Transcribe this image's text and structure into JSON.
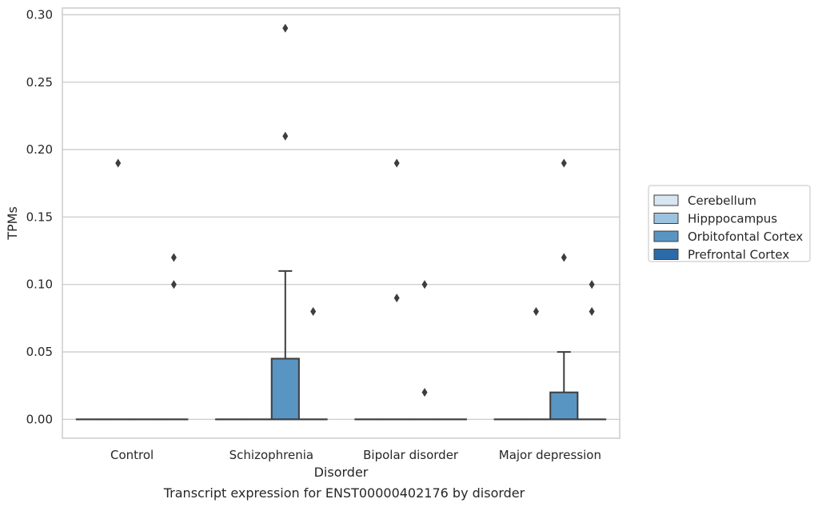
{
  "chart_data": {
    "type": "box",
    "caption": "Transcript expression for ENST00000402176 by disorder",
    "xlabel": "Disorder",
    "ylabel": "TPMs",
    "ylim": [
      -0.014,
      0.305
    ],
    "yticks": [
      0.0,
      0.05,
      0.1,
      0.15,
      0.2,
      0.25,
      0.3
    ],
    "ytick_labels": [
      "0.00",
      "0.05",
      "0.10",
      "0.15",
      "0.20",
      "0.25",
      "0.30"
    ],
    "grid": true,
    "legend_position": "right",
    "categories": [
      "Control",
      "Schizophrenia",
      "Bipolar disorder",
      "Major depression"
    ],
    "series": [
      {
        "name": "Cerebellum",
        "color": "#d8e6f2",
        "boxes": [
          {
            "q1": 0,
            "median": 0,
            "q3": 0,
            "whisker_low": 0,
            "whisker_high": 0,
            "outliers": []
          },
          {
            "q1": 0,
            "median": 0,
            "q3": 0,
            "whisker_low": 0,
            "whisker_high": 0,
            "outliers": []
          },
          {
            "q1": 0,
            "median": 0,
            "q3": 0,
            "whisker_low": 0,
            "whisker_high": 0,
            "outliers": []
          },
          {
            "q1": 0,
            "median": 0,
            "q3": 0,
            "whisker_low": 0,
            "whisker_high": 0,
            "outliers": []
          }
        ]
      },
      {
        "name": "Hipppocampus",
        "color": "#9cc3dd",
        "boxes": [
          {
            "q1": 0,
            "median": 0,
            "q3": 0,
            "whisker_low": 0,
            "whisker_high": 0,
            "outliers": [
              0.19
            ]
          },
          {
            "q1": 0,
            "median": 0,
            "q3": 0,
            "whisker_low": 0,
            "whisker_high": 0,
            "outliers": []
          },
          {
            "q1": 0,
            "median": 0,
            "q3": 0,
            "whisker_low": 0,
            "whisker_high": 0,
            "outliers": [
              0.19,
              0.09
            ]
          },
          {
            "q1": 0,
            "median": 0,
            "q3": 0,
            "whisker_low": 0,
            "whisker_high": 0,
            "outliers": [
              0.08
            ]
          }
        ]
      },
      {
        "name": "Orbitofontal Cortex",
        "color": "#5995c3",
        "boxes": [
          {
            "q1": 0,
            "median": 0,
            "q3": 0,
            "whisker_low": 0,
            "whisker_high": 0,
            "outliers": []
          },
          {
            "q1": 0,
            "median": 0,
            "q3": 0.045,
            "whisker_low": 0,
            "whisker_high": 0.11,
            "outliers": [
              0.29,
              0.21
            ]
          },
          {
            "q1": 0,
            "median": 0,
            "q3": 0,
            "whisker_low": 0,
            "whisker_high": 0,
            "outliers": [
              0.1,
              0.02
            ]
          },
          {
            "q1": 0,
            "median": 0,
            "q3": 0.02,
            "whisker_low": 0,
            "whisker_high": 0.05,
            "outliers": [
              0.19,
              0.12
            ]
          }
        ]
      },
      {
        "name": "Prefrontal Cortex",
        "color": "#2c6ba8",
        "boxes": [
          {
            "q1": 0,
            "median": 0,
            "q3": 0,
            "whisker_low": 0,
            "whisker_high": 0,
            "outliers": [
              0.12,
              0.1
            ]
          },
          {
            "q1": 0,
            "median": 0,
            "q3": 0,
            "whisker_low": 0,
            "whisker_high": 0,
            "outliers": [
              0.08
            ]
          },
          {
            "q1": 0,
            "median": 0,
            "q3": 0,
            "whisker_low": 0,
            "whisker_high": 0,
            "outliers": []
          },
          {
            "q1": 0,
            "median": 0,
            "q3": 0,
            "whisker_low": 0,
            "whisker_high": 0,
            "outliers": [
              0.1,
              0.08
            ]
          }
        ]
      }
    ]
  }
}
